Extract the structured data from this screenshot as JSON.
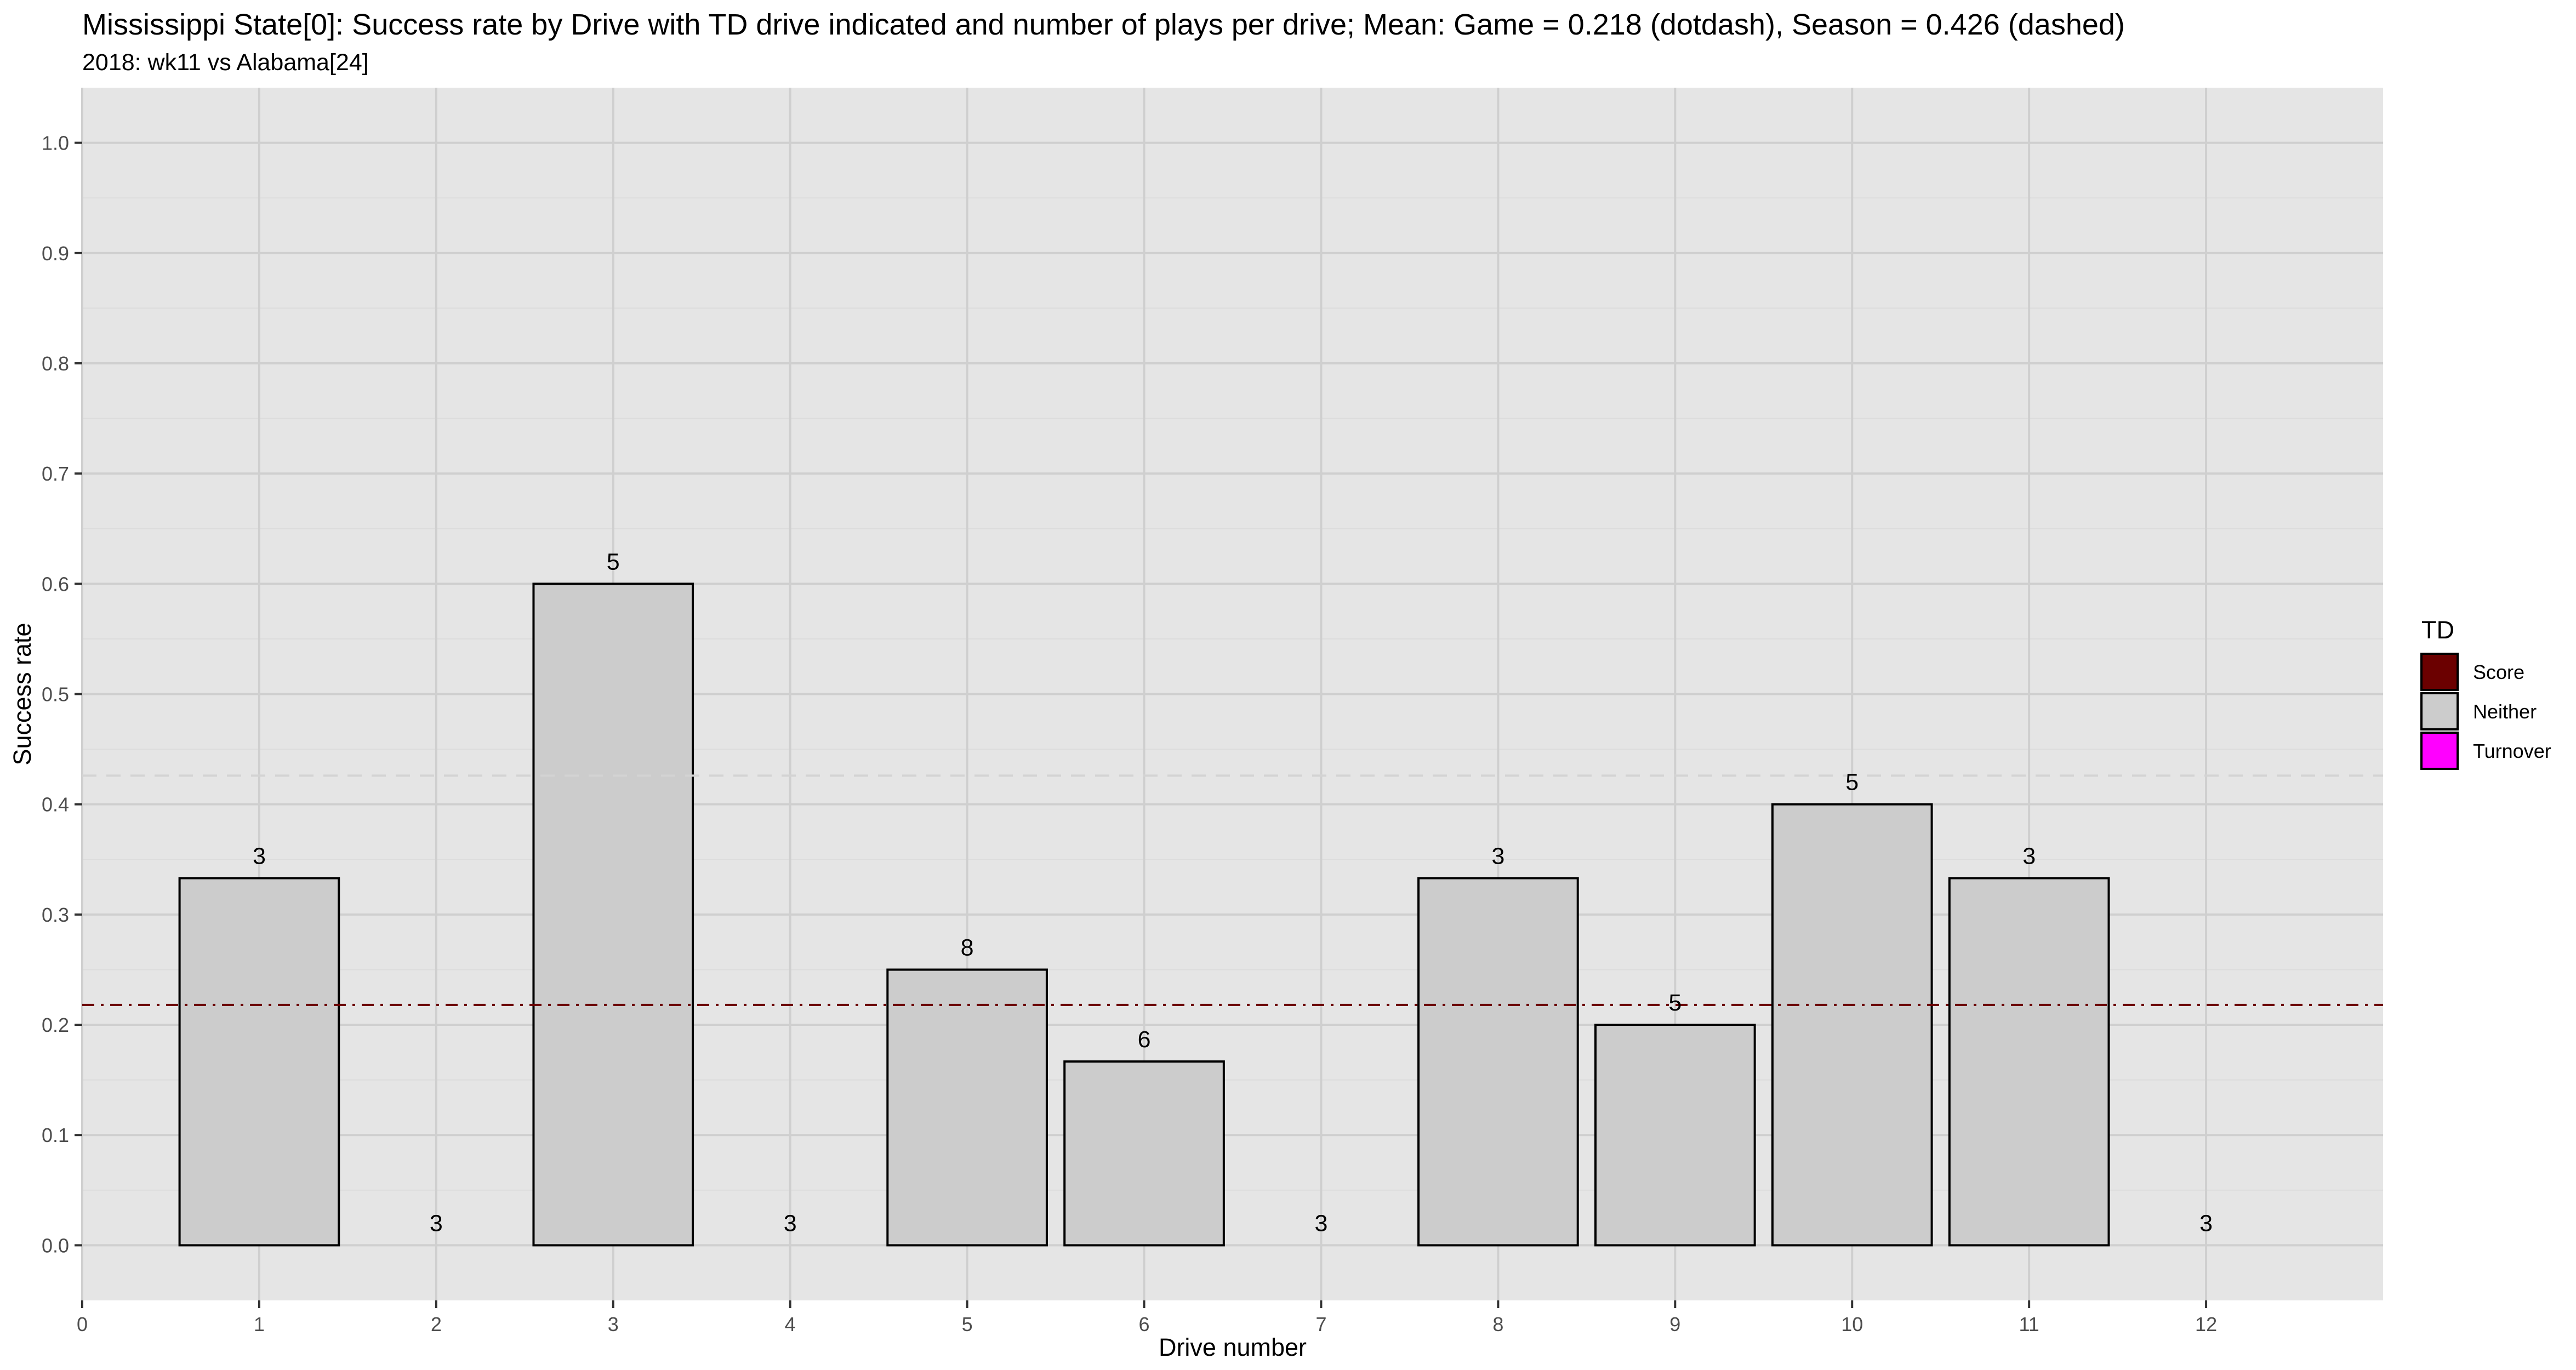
{
  "chart_data": {
    "type": "bar",
    "title": "Mississippi State[0]: Success rate by Drive with TD drive indicated and number of plays per drive; Mean: Game = 0.218 (dotdash), Season = 0.426 (dashed)",
    "subtitle": "2018: wk11 vs Alabama[24]",
    "xlabel": "Drive number",
    "ylabel": "Success rate",
    "xlim": [
      0,
      13
    ],
    "ylim": [
      -0.05,
      1.05
    ],
    "x_ticks": [
      "0",
      "1",
      "2",
      "3",
      "4",
      "5",
      "6",
      "7",
      "8",
      "9",
      "10",
      "11",
      "12"
    ],
    "y_ticks": [
      "0.0",
      "0.1",
      "0.2",
      "0.3",
      "0.4",
      "0.5",
      "0.6",
      "0.7",
      "0.8",
      "0.9",
      "1.0"
    ],
    "categories": [
      1,
      2,
      3,
      4,
      5,
      6,
      7,
      8,
      9,
      10,
      11,
      12
    ],
    "values": [
      0.333,
      0,
      0.6,
      0,
      0.25,
      0.1667,
      0,
      0.333,
      0.2,
      0.4,
      0.333,
      0
    ],
    "plays": [
      "3",
      "3",
      "5",
      "3",
      "8",
      "6",
      "3",
      "3",
      "5",
      "5",
      "3",
      "3"
    ],
    "td": [
      "Neither",
      "Neither",
      "Neither",
      "Neither",
      "Neither",
      "Neither",
      "Neither",
      "Neither",
      "Neither",
      "Neither",
      "Neither",
      "Neither"
    ],
    "game_mean": 0.218,
    "season_mean": 0.426,
    "legend": {
      "title": "TD",
      "position": "right",
      "items": [
        {
          "label": "Score",
          "color": "#6b0000"
        },
        {
          "label": "Neither",
          "color": "#cccccc"
        },
        {
          "label": "Turnover",
          "color": "#ff00ff"
        }
      ]
    },
    "colors": {
      "panel": "#e5e5e5",
      "grid_major": "#cfcfcf",
      "grid_minor": "#dcdcdc",
      "game_line": "#6b0000",
      "season_line": "#d3d3d3"
    },
    "grid": true
  }
}
